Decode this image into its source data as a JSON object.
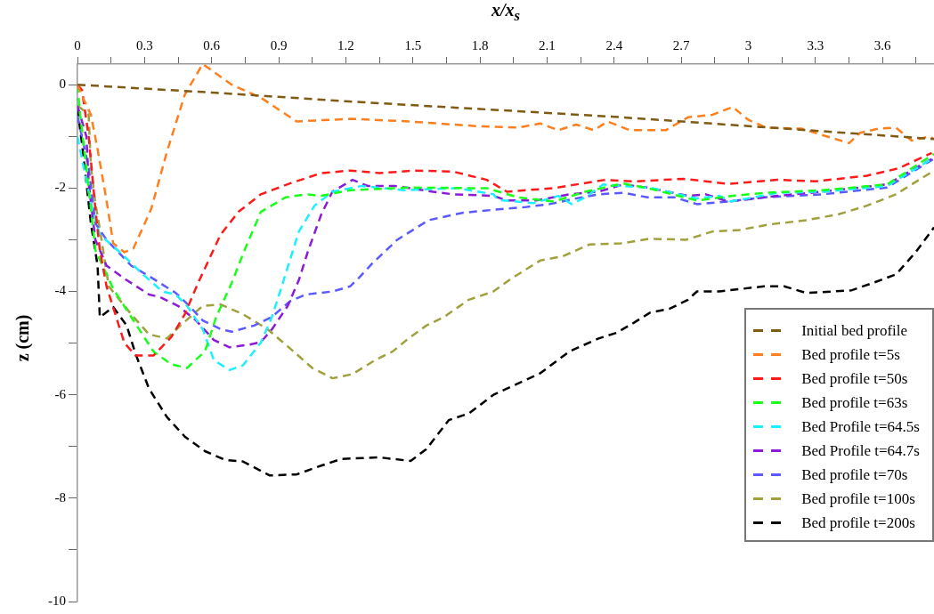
{
  "chart_data": {
    "type": "line",
    "xlabel": "x/x$_{s}$",
    "ylabel": "z (cm)",
    "xlim": [
      0,
      3.83
    ],
    "ylim": [
      -10,
      0.4
    ],
    "xticks": [
      0,
      {
        "value": 0.15,
        "label": null
      },
      0.3,
      {
        "value": 0.45,
        "label": null
      },
      0.6,
      {
        "value": 0.75,
        "label": null
      },
      0.9,
      {
        "value": 1.05,
        "label": null
      },
      1.2,
      {
        "value": 1.35,
        "label": null
      },
      1.5,
      {
        "value": 1.65,
        "label": null
      },
      1.8,
      {
        "value": 1.95,
        "label": null
      },
      2.1,
      {
        "value": 2.25,
        "label": null
      },
      2.4,
      {
        "value": 2.55,
        "label": null
      },
      2.7,
      {
        "value": 2.85,
        "label": null
      },
      3,
      {
        "value": 3.15,
        "label": null
      },
      3.3,
      {
        "value": 3.45,
        "label": null
      },
      3.6,
      {
        "value": 3.75,
        "label": null
      }
    ],
    "yticks": [
      0,
      {
        "value": -1,
        "label": null
      },
      -2,
      {
        "value": -3,
        "label": null
      },
      -4,
      {
        "value": -5,
        "label": null
      },
      -6,
      {
        "value": -7,
        "label": null
      },
      -8,
      {
        "value": -9,
        "label": null
      },
      -10
    ],
    "grid": false,
    "legend": "bottom right",
    "marker": "none",
    "line_style": "dashed",
    "series": [
      {
        "name": "Initial bed profile",
        "color": "#7f5a12",
        "x": [
          0,
          0.6,
          1.2,
          1.8,
          2.4,
          3,
          3.83
        ],
        "values": [
          0,
          -0.15,
          -0.32,
          -0.47,
          -0.62,
          -0.8,
          -1.05
        ]
      },
      {
        "name": "Bed profile t=5s",
        "color": "#ff7f1e",
        "x": [
          0,
          0.03,
          0.06,
          0.09,
          0.13,
          0.16,
          0.21,
          0.25,
          0.33,
          0.4,
          0.48,
          0.56,
          0.69,
          0.82,
          0.98,
          1.22,
          1.48,
          1.78,
          1.97,
          2.07,
          2.15,
          2.23,
          2.31,
          2.37,
          2.47,
          2.63,
          2.73,
          2.84,
          2.93,
          3,
          3.08,
          3.24,
          3.32,
          3.45,
          3.5,
          3.58,
          3.66,
          3.73,
          3.81,
          3.83
        ],
        "values": [
          0,
          -0.3,
          -0.58,
          -1.25,
          -2.24,
          -3.07,
          -3.24,
          -3.17,
          -2.4,
          -1.3,
          -0.19,
          0.4,
          0,
          -0.25,
          -0.71,
          -0.66,
          -0.71,
          -0.8,
          -0.83,
          -0.75,
          -0.88,
          -0.77,
          -0.88,
          -0.71,
          -0.88,
          -0.88,
          -0.63,
          -0.58,
          -0.43,
          -0.68,
          -0.83,
          -0.85,
          -0.96,
          -1.13,
          -0.93,
          -0.85,
          -0.83,
          -1.08,
          -1,
          -1.05
        ]
      },
      {
        "name": "Bed profile t=50s",
        "color": "#ff1a1a",
        "x": [
          0,
          0.02,
          0.05,
          0.08,
          0.1,
          0.13,
          0.21,
          0.26,
          0.34,
          0.42,
          0.48,
          0.54,
          0.64,
          0.72,
          0.82,
          0.95,
          1.09,
          1.22,
          1.35,
          1.51,
          1.68,
          1.83,
          1.92,
          2.13,
          2.36,
          2.49,
          2.71,
          2.91,
          3.13,
          3.3,
          3.53,
          3.67,
          3.82
        ],
        "values": [
          0,
          -0.1,
          -1,
          -2.4,
          -3.2,
          -3.9,
          -5,
          -5.24,
          -5.24,
          -4.88,
          -4.44,
          -3.83,
          -2.9,
          -2.46,
          -2.12,
          -1.91,
          -1.71,
          -1.66,
          -1.71,
          -1.66,
          -1.68,
          -1.84,
          -2.07,
          -2,
          -1.84,
          -1.87,
          -1.82,
          -1.92,
          -1.84,
          -1.87,
          -1.76,
          -1.62,
          -1.32
        ]
      },
      {
        "name": "Bed profile t=63s",
        "color": "#1aff1a",
        "x": [
          0,
          0.01,
          0.05,
          0.08,
          0.16,
          0.29,
          0.34,
          0.42,
          0.49,
          0.57,
          0.62,
          0.69,
          0.75,
          0.82,
          0.93,
          1.02,
          1.09,
          1.22,
          1.48,
          1.75,
          1.83,
          1.97,
          2.13,
          2.27,
          2.44,
          2.55,
          2.77,
          2.93,
          3.08,
          3.33,
          3.62,
          3.73,
          3.83
        ],
        "values": [
          0,
          -0.5,
          -2,
          -3.2,
          -3.95,
          -4.83,
          -5.16,
          -5.41,
          -5.48,
          -5.16,
          -4.5,
          -3.83,
          -3.17,
          -2.46,
          -2.18,
          -2.12,
          -2.15,
          -2.04,
          -1.99,
          -2,
          -2,
          -2.18,
          -2.26,
          -2.07,
          -1.91,
          -2,
          -2.24,
          -2.15,
          -2.09,
          -2.04,
          -1.93,
          -1.62,
          -1.34
        ]
      },
      {
        "name": "Bed Profile t=64.5s",
        "color": "#1af0ff",
        "x": [
          0,
          0.06,
          0.1,
          0.2,
          0.29,
          0.38,
          0.44,
          0.49,
          0.56,
          0.61,
          0.68,
          0.74,
          0.82,
          0.87,
          0.91,
          0.99,
          1.06,
          1.14,
          1.27,
          1.46,
          1.7,
          1.86,
          1.88,
          2.04,
          2.15,
          2.21,
          2.27,
          2.35,
          2.44,
          2.57,
          2.77,
          2.87,
          2.92,
          3.06,
          3.13,
          3.33,
          3.62,
          3.83
        ],
        "values": [
          -1,
          -2.29,
          -2.9,
          -3.28,
          -3.66,
          -4,
          -4.06,
          -4.28,
          -4.73,
          -5.33,
          -5.52,
          -5.43,
          -4.99,
          -4.49,
          -3.95,
          -2.84,
          -2.34,
          -2.07,
          -1.96,
          -2.04,
          -2,
          -2.12,
          -2.23,
          -2.29,
          -2.15,
          -2.31,
          -2.18,
          -1.93,
          -1.96,
          -2,
          -2.2,
          -2.15,
          -2.26,
          -2.15,
          -2.09,
          -2.07,
          -1.96,
          -1.41
        ]
      },
      {
        "name": "Bed Profile t=64.7s",
        "color": "#8c1ad9",
        "x": [
          0,
          0.04,
          0.05,
          0.08,
          0.13,
          0.22,
          0.32,
          0.37,
          0.45,
          0.53,
          0.61,
          0.68,
          0.77,
          0.82,
          0.87,
          0.94,
          0.99,
          1.03,
          1.09,
          1.14,
          1.23,
          1.3,
          1.42,
          1.59,
          1.68,
          1.86,
          1.92,
          2.05,
          2.2,
          2.33,
          2.44,
          2.55,
          2.73,
          2.81,
          2.91,
          3.07,
          3.13,
          3.33,
          3.62,
          3.83
        ],
        "values": [
          -0.41,
          -1,
          -1.9,
          -3,
          -3.5,
          -3.78,
          -4.06,
          -4.11,
          -4.28,
          -4.56,
          -4.94,
          -5.08,
          -5.03,
          -4.98,
          -4.73,
          -4.28,
          -3.78,
          -3.23,
          -2.51,
          -2.07,
          -1.84,
          -1.96,
          -1.96,
          -2.07,
          -2.12,
          -2.15,
          -2.24,
          -2.24,
          -2.12,
          -2.07,
          -1.93,
          -1.99,
          -2.15,
          -2.12,
          -2.26,
          -2.18,
          -2.15,
          -2.07,
          -1.93,
          -1.41
        ]
      },
      {
        "name": "Bed profile t=70s",
        "color": "#5a5aff",
        "x": [
          0,
          0.05,
          0.08,
          0.13,
          0.24,
          0.33,
          0.44,
          0.5,
          0.56,
          0.64,
          0.69,
          0.79,
          0.87,
          0.95,
          1.02,
          1.14,
          1.22,
          1.26,
          1.32,
          1.43,
          1.57,
          1.72,
          1.86,
          2,
          2.11,
          2.23,
          2.33,
          2.44,
          2.55,
          2.67,
          2.77,
          2.91,
          3.07,
          3.33,
          3.62,
          3.83
        ],
        "values": [
          -0.6,
          -1.6,
          -2.68,
          -3,
          -3.5,
          -3.73,
          -4.03,
          -4.28,
          -4.56,
          -4.73,
          -4.78,
          -4.66,
          -4.49,
          -4.19,
          -4.06,
          -4,
          -3.9,
          -3.73,
          -3.45,
          -3,
          -2.62,
          -2.48,
          -2.42,
          -2.37,
          -2.31,
          -2.2,
          -2.12,
          -2.09,
          -2.18,
          -2.18,
          -2.31,
          -2.26,
          -2.18,
          -2.12,
          -1.99,
          -1.43
        ]
      },
      {
        "name": "Bed profile t=100s",
        "color": "#a0a03c",
        "x": [
          0,
          0.05,
          0.06,
          0.08,
          0.1,
          0.14,
          0.24,
          0.32,
          0.4,
          0.46,
          0.56,
          0.64,
          0.74,
          0.85,
          0.95,
          1.05,
          1.14,
          1.23,
          1.33,
          1.41,
          1.48,
          1.56,
          1.64,
          1.75,
          1.86,
          1.94,
          2.07,
          2.17,
          2.29,
          2.43,
          2.56,
          2.72,
          2.84,
          2.96,
          3.1,
          3.26,
          3.4,
          3.53,
          3.66,
          3.83
        ],
        "values": [
          -0.4,
          -0.58,
          -1.57,
          -2.29,
          -2.79,
          -3.9,
          -4.44,
          -4.83,
          -4.91,
          -4.66,
          -4.28,
          -4.25,
          -4.44,
          -4.73,
          -5.1,
          -5.48,
          -5.68,
          -5.6,
          -5.33,
          -5.16,
          -4.91,
          -4.66,
          -4.49,
          -4.16,
          -4,
          -3.75,
          -3.4,
          -3.32,
          -3.09,
          -3.07,
          -2.98,
          -3,
          -2.84,
          -2.81,
          -2.7,
          -2.62,
          -2.51,
          -2.34,
          -2.12,
          -1.66
        ]
      },
      {
        "name": "Bed profile t=200s",
        "color": "#000000",
        "x": [
          0,
          0.02,
          0.04,
          0.06,
          0.09,
          0.1,
          0.16,
          0.22,
          0.26,
          0.32,
          0.4,
          0.48,
          0.57,
          0.66,
          0.74,
          0.86,
          0.98,
          1.09,
          1.18,
          1.35,
          1.49,
          1.56,
          1.66,
          1.75,
          1.86,
          2,
          2.07,
          2.2,
          2.33,
          2.41,
          2.49,
          2.56,
          2.65,
          2.73,
          2.77,
          2.87,
          3.07,
          3.16,
          3.26,
          3.46,
          3.56,
          3.66,
          3.75,
          3.83
        ],
        "values": [
          -0.46,
          -1.13,
          -1.9,
          -2.68,
          -3.5,
          -4.5,
          -4.3,
          -4.66,
          -5.21,
          -5.88,
          -6.43,
          -6.81,
          -7.09,
          -7.26,
          -7.29,
          -7.56,
          -7.54,
          -7.37,
          -7.24,
          -7.21,
          -7.28,
          -7.05,
          -6.49,
          -6.36,
          -6,
          -5.72,
          -5.58,
          -5.16,
          -4.91,
          -4.8,
          -4.6,
          -4.41,
          -4.33,
          -4.16,
          -4,
          -4,
          -3.9,
          -3.9,
          -4.03,
          -3.98,
          -3.83,
          -3.67,
          -3.23,
          -2.76
        ]
      }
    ]
  }
}
